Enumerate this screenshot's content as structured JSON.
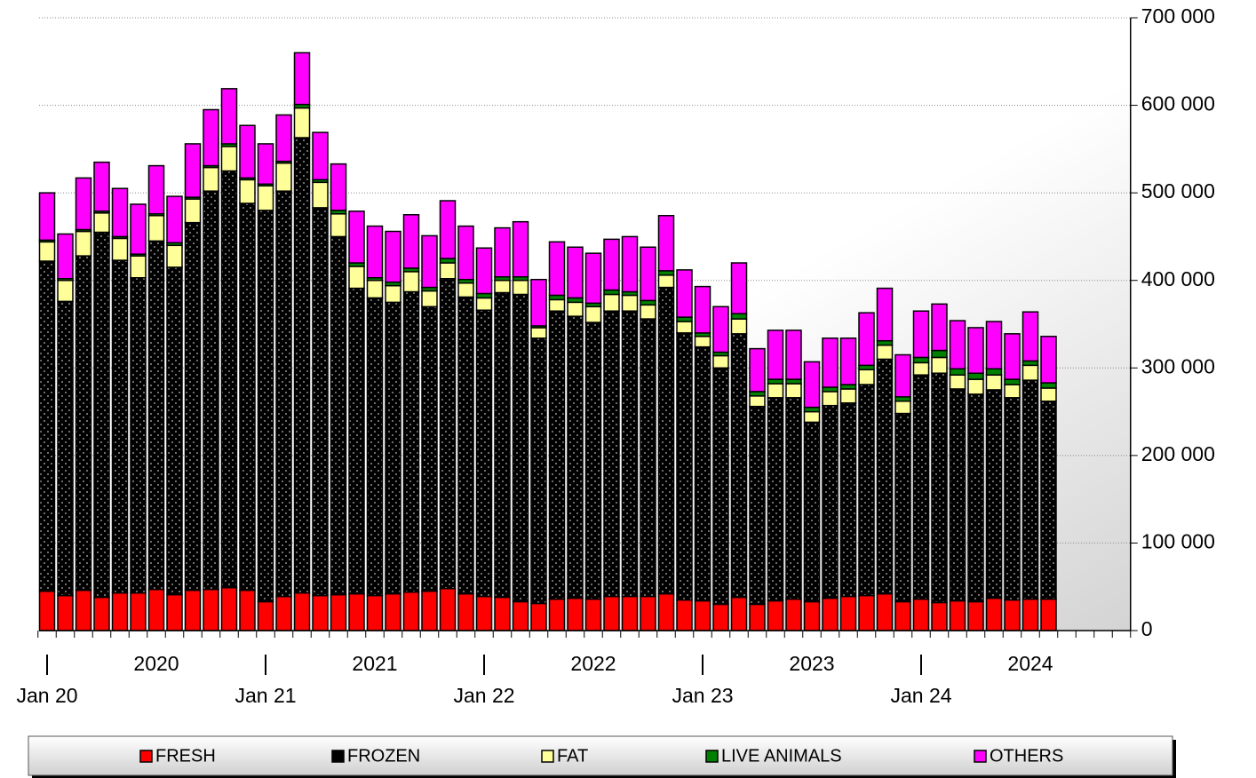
{
  "chart_data": {
    "type": "stacked_bar",
    "categories": [
      "Jan 20",
      null,
      null,
      null,
      null,
      null,
      null,
      null,
      null,
      null,
      null,
      null,
      "Jan 21",
      null,
      null,
      null,
      null,
      null,
      null,
      null,
      null,
      null,
      null,
      null,
      "Jan 22",
      null,
      null,
      null,
      null,
      null,
      null,
      null,
      null,
      null,
      null,
      null,
      "Jan 23",
      null,
      null,
      null,
      null,
      null,
      null,
      null,
      null,
      null,
      null,
      null,
      "Jan 24",
      null,
      null,
      null,
      null,
      null,
      null,
      null,
      null,
      null,
      null,
      null
    ],
    "year_labels": [
      "2020",
      "2021",
      "2022",
      "2023",
      "2024"
    ],
    "ylim": [
      0,
      700000
    ],
    "yticks": [
      0,
      {
        "value": 100000,
        "label": "100 000"
      },
      {
        "value": 200000,
        "label": "200 000"
      },
      {
        "value": 300000,
        "label": "300 000"
      },
      {
        "value": 400000,
        "label": "400 000"
      },
      {
        "value": 500000,
        "label": "500 000"
      },
      {
        "value": 600000,
        "label": "600 000"
      },
      {
        "value": 700000,
        "label": "700 000"
      }
    ],
    "grid": true,
    "legend": "bottom",
    "series": [
      {
        "name": "FRESH",
        "color": "#ff0000",
        "values": [
          45000,
          40000,
          46000,
          38000,
          43000,
          43000,
          47000,
          41000,
          46000,
          47000,
          49000,
          46000,
          33000,
          39000,
          43000,
          40000,
          41000,
          42000,
          40000,
          42000,
          44000,
          45000,
          48000,
          42000,
          39000,
          38000,
          33000,
          31000,
          36000,
          37000,
          36000,
          39000,
          39000,
          39000,
          42000,
          35000,
          34000,
          30000,
          38000,
          30000,
          34000,
          36000,
          33000,
          37000,
          39000,
          40000,
          42000,
          33000,
          36000,
          32000,
          34000,
          33000,
          37000,
          35000,
          36000,
          36000,
          null,
          null,
          null,
          null
        ]
      },
      {
        "name": "FROZEN",
        "color": "#000000",
        "values": [
          377000,
          336000,
          382000,
          417000,
          380000,
          360000,
          398000,
          374000,
          420000,
          455000,
          476000,
          442000,
          447000,
          463000,
          520000,
          443000,
          409000,
          349000,
          340000,
          333000,
          343000,
          325000,
          354000,
          339000,
          327000,
          348000,
          351000,
          303000,
          329000,
          322000,
          316000,
          326000,
          326000,
          317000,
          350000,
          305000,
          290000,
          270000,
          301000,
          226000,
          232000,
          230000,
          205000,
          220000,
          221000,
          241000,
          268000,
          215000,
          256000,
          262000,
          242000,
          237000,
          238000,
          231000,
          250000,
          226000,
          null,
          null,
          null,
          null
        ]
      },
      {
        "name": "FAT",
        "color": "#ffff99",
        "values": [
          22000,
          24000,
          28000,
          22000,
          25000,
          25000,
          29000,
          25000,
          27000,
          27000,
          28000,
          27000,
          28000,
          32000,
          34000,
          29000,
          26000,
          25000,
          20000,
          19000,
          23000,
          18000,
          18000,
          16000,
          14000,
          14000,
          16000,
          12000,
          13000,
          16000,
          18000,
          19000,
          18000,
          16000,
          14000,
          13000,
          12000,
          14000,
          17000,
          12000,
          16000,
          16000,
          12000,
          16000,
          16000,
          17000,
          16000,
          14000,
          14000,
          18000,
          16000,
          17000,
          17000,
          15000,
          17000,
          15000,
          null,
          null,
          null,
          null
        ]
      },
      {
        "name": "LIVE ANIMALS",
        "color": "#008000",
        "values": [
          2000,
          2000,
          2000,
          2000,
          2000,
          2000,
          2000,
          3000,
          2000,
          2000,
          3000,
          2000,
          2000,
          2000,
          4000,
          3000,
          4000,
          4000,
          3000,
          4000,
          4000,
          4000,
          5000,
          4000,
          5000,
          4000,
          4000,
          2000,
          5000,
          5000,
          4000,
          5000,
          4000,
          5000,
          5000,
          5000,
          4000,
          4000,
          6000,
          5000,
          5000,
          5000,
          5000,
          5000,
          5000,
          5000,
          5000,
          5000,
          6000,
          8000,
          7000,
          7000,
          7000,
          6000,
          5000,
          6000,
          null,
          null,
          null,
          null
        ]
      },
      {
        "name": "OTHERS",
        "color": "#ff00ff",
        "values": [
          54000,
          51000,
          59000,
          56000,
          55000,
          57000,
          55000,
          53000,
          61000,
          64000,
          63000,
          60000,
          46000,
          53000,
          59000,
          54000,
          53000,
          59000,
          59000,
          58000,
          61000,
          59000,
          66000,
          61000,
          52000,
          56000,
          63000,
          53000,
          61000,
          58000,
          57000,
          58000,
          63000,
          61000,
          63000,
          54000,
          53000,
          52000,
          58000,
          49000,
          56000,
          56000,
          52000,
          56000,
          53000,
          60000,
          60000,
          48000,
          53000,
          53000,
          55000,
          52000,
          54000,
          52000,
          56000,
          53000,
          null,
          null,
          null,
          null
        ]
      }
    ]
  }
}
